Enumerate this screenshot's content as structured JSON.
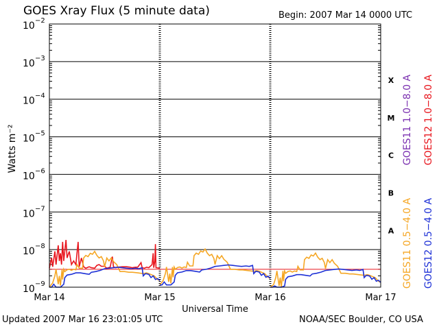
{
  "header": {
    "title": "GOES Xray Flux (5 minute data)",
    "begin": "Begin:  2007 Mar 14 0000 UTC"
  },
  "footer": {
    "updated": "Updated 2007 Mar 16 23:01:05 UTC",
    "source": "NOAA/SEC Boulder, CO USA"
  },
  "colors": {
    "goes11_long": "#7a2fb0",
    "goes12_long": "#e8141c",
    "goes11_short": "#f5a623",
    "goes12_short": "#1c2fd6",
    "flare_line": "#e8141c"
  },
  "chart_data": {
    "type": "line",
    "title": "GOES Xray Flux (5 minute data)",
    "xlabel": "Universal Time",
    "ylabel": "Watts m⁻²",
    "y_scale": "log",
    "ylim": [
      1e-09,
      0.01
    ],
    "xlim": [
      0,
      3
    ],
    "x_ticks": [
      {
        "x": 0,
        "label": "Mar 14"
      },
      {
        "x": 1,
        "label": "Mar 15"
      },
      {
        "x": 2,
        "label": "Mar 16"
      },
      {
        "x": 3,
        "label": "Mar 17"
      }
    ],
    "y_ticks": [
      {
        "base": "10",
        "exp": "−2",
        "value": 0.01
      },
      {
        "base": "10",
        "exp": "−3",
        "value": 0.001
      },
      {
        "base": "10",
        "exp": "−4",
        "value": 0.0001
      },
      {
        "base": "10",
        "exp": "−5",
        "value": 1e-05
      },
      {
        "base": "10",
        "exp": "−6",
        "value": 1e-06
      },
      {
        "base": "10",
        "exp": "−7",
        "value": 1e-07
      },
      {
        "base": "10",
        "exp": "−8",
        "value": 1e-08
      },
      {
        "base": "10",
        "exp": "−9",
        "value": 1e-09
      }
    ],
    "flare_classes": [
      {
        "label": "X",
        "value": 0.00032
      },
      {
        "label": "M",
        "value": 3.2e-05
      },
      {
        "label": "C",
        "value": 3.2e-06
      },
      {
        "label": "B",
        "value": 3.2e-07
      },
      {
        "label": "A",
        "value": 3.2e-08
      }
    ],
    "reference_line": 3e-09,
    "legend": [
      {
        "name": "GOES12  0.5−4.0 A",
        "color": "#1c2fd6"
      },
      {
        "name": "GOES11  0.5−4.0 A",
        "color": "#f5a623"
      },
      {
        "name": "GOES12  1.0−8.0 A",
        "color": "#e8141c"
      },
      {
        "name": "GOES11  1.0−8.0 A",
        "color": "#7a2fb0"
      }
    ],
    "series": [
      {
        "name": "GOES12  1.0−8.0 A",
        "color": "#e8141c",
        "points": [
          [
            0.0,
            3.2e-09
          ],
          [
            0.02,
            6e-09
          ],
          [
            0.03,
            3.5e-09
          ],
          [
            0.05,
            9e-09
          ],
          [
            0.06,
            4e-09
          ],
          [
            0.08,
            1.3e-08
          ],
          [
            0.09,
            5e-09
          ],
          [
            0.1,
            8e-09
          ],
          [
            0.11,
            4e-09
          ],
          [
            0.12,
            1.6e-08
          ],
          [
            0.13,
            5e-09
          ],
          [
            0.15,
            1.8e-08
          ],
          [
            0.16,
            6e-09
          ],
          [
            0.18,
            9e-09
          ],
          [
            0.2,
            4e-09
          ],
          [
            0.22,
            5e-09
          ],
          [
            0.24,
            4e-09
          ],
          [
            0.26,
            1.6e-08
          ],
          [
            0.27,
            3.5e-09
          ],
          [
            0.29,
            6e-09
          ],
          [
            0.31,
            3.5e-09
          ],
          [
            0.33,
            3.2e-09
          ],
          [
            0.36,
            3.5e-09
          ],
          [
            0.38,
            3.3e-09
          ],
          [
            0.41,
            3.2e-09
          ],
          [
            0.43,
            3.8e-09
          ],
          [
            0.45,
            4e-09
          ],
          [
            0.47,
            3.6e-09
          ],
          [
            0.5,
            3.6e-09
          ],
          [
            0.52,
            3.2e-09
          ],
          [
            0.55,
            3.4e-09
          ],
          [
            0.57,
            6.5e-09
          ],
          [
            0.58,
            3.5e-09
          ],
          [
            0.6,
            3.3e-09
          ],
          [
            0.62,
            3.4e-09
          ],
          [
            0.66,
            3.5e-09
          ],
          [
            0.7,
            3.5e-09
          ],
          [
            0.73,
            3.4e-09
          ],
          [
            0.75,
            3.3e-09
          ],
          [
            0.78,
            3.4e-09
          ],
          [
            0.8,
            3.4e-09
          ],
          [
            0.83,
            4.5e-09
          ],
          [
            0.84,
            3.3e-09
          ],
          [
            0.86,
            3.2e-09
          ],
          [
            0.88,
            3.4e-09
          ],
          [
            0.9,
            3.3e-09
          ],
          [
            0.93,
            4e-09
          ],
          [
            0.94,
            8e-09
          ],
          [
            0.945,
            3.3e-09
          ],
          [
            0.955,
            5e-09
          ],
          [
            0.96,
            1.4e-08
          ],
          [
            0.965,
            3.3e-09
          ],
          [
            1.0,
            3.2e-09
          ]
        ]
      },
      {
        "name": "GOES11  0.5−4.0 A",
        "color": "#f5a623",
        "points": [
          [
            0.0,
            1e-09
          ],
          [
            0.03,
            1.3e-09
          ],
          [
            0.05,
            2e-09
          ],
          [
            0.06,
            3e-09
          ],
          [
            0.08,
            1.2e-09
          ],
          [
            0.09,
            2e-09
          ],
          [
            0.1,
            1.1e-09
          ],
          [
            0.115,
            3e-09
          ],
          [
            0.12,
            1.6e-09
          ],
          [
            0.13,
            3e-09
          ],
          [
            0.14,
            2.6e-09
          ],
          [
            0.16,
            2.9e-09
          ],
          [
            0.18,
            3e-09
          ],
          [
            0.2,
            2.8e-09
          ],
          [
            0.22,
            3e-09
          ],
          [
            0.24,
            2.9e-09
          ],
          [
            0.25,
            4e-09
          ],
          [
            0.27,
            3.2e-09
          ],
          [
            0.3,
            3.2e-09
          ],
          [
            0.31,
            6e-09
          ],
          [
            0.33,
            7e-09
          ],
          [
            0.35,
            6.5e-09
          ],
          [
            0.37,
            8e-09
          ],
          [
            0.39,
            7.5e-09
          ],
          [
            0.41,
            9e-09
          ],
          [
            0.43,
            7e-09
          ],
          [
            0.45,
            6e-09
          ],
          [
            0.47,
            6.5e-09
          ],
          [
            0.49,
            5e-09
          ],
          [
            0.5,
            3.5e-09
          ],
          [
            0.52,
            6e-09
          ],
          [
            0.54,
            5e-09
          ],
          [
            0.56,
            6e-09
          ],
          [
            0.58,
            4.8e-09
          ],
          [
            0.61,
            4e-09
          ],
          [
            0.64,
            2.6e-09
          ],
          [
            0.68,
            2.6e-09
          ],
          [
            0.72,
            2.5e-09
          ],
          [
            0.75,
            2.5e-09
          ],
          [
            0.8,
            2.4e-09
          ],
          [
            0.85,
            2.3e-09
          ],
          [
            0.88,
            2.4e-09
          ],
          [
            0.9,
            2.3e-09
          ],
          [
            0.95,
            2e-09
          ],
          [
            0.98,
            1.6e-09
          ],
          [
            1.0,
            1.5e-09
          ]
        ]
      },
      {
        "name": "GOES12  0.5−4.0 A",
        "color": "#1c2fd6",
        "points": [
          [
            0.0,
            1e-09
          ],
          [
            0.02,
            1e-09
          ],
          [
            0.04,
            1.2e-09
          ],
          [
            0.06,
            1e-09
          ],
          [
            0.1,
            1e-09
          ],
          [
            0.13,
            1.2e-09
          ],
          [
            0.14,
            1.8e-09
          ],
          [
            0.16,
            2.1e-09
          ],
          [
            0.2,
            2.2e-09
          ],
          [
            0.24,
            2.4e-09
          ],
          [
            0.28,
            2.4e-09
          ],
          [
            0.32,
            2.3e-09
          ],
          [
            0.36,
            2.2e-09
          ],
          [
            0.38,
            2.5e-09
          ],
          [
            0.42,
            2.6e-09
          ],
          [
            0.46,
            2.8e-09
          ],
          [
            0.5,
            3.1e-09
          ],
          [
            0.54,
            3.2e-09
          ],
          [
            0.58,
            3.3e-09
          ],
          [
            0.62,
            3.4e-09
          ],
          [
            0.66,
            3.3e-09
          ],
          [
            0.7,
            3.2e-09
          ],
          [
            0.74,
            3.1e-09
          ],
          [
            0.78,
            3.2e-09
          ],
          [
            0.81,
            3.1e-09
          ],
          [
            0.84,
            3.3e-09
          ],
          [
            0.85,
            2e-09
          ],
          [
            0.87,
            2.3e-09
          ],
          [
            0.9,
            2.2e-09
          ],
          [
            0.92,
            1.8e-09
          ],
          [
            0.94,
            2e-09
          ],
          [
            0.96,
            1.6e-09
          ],
          [
            0.98,
            1.7e-09
          ],
          [
            1.0,
            1.5e-09
          ]
        ]
      }
    ]
  }
}
